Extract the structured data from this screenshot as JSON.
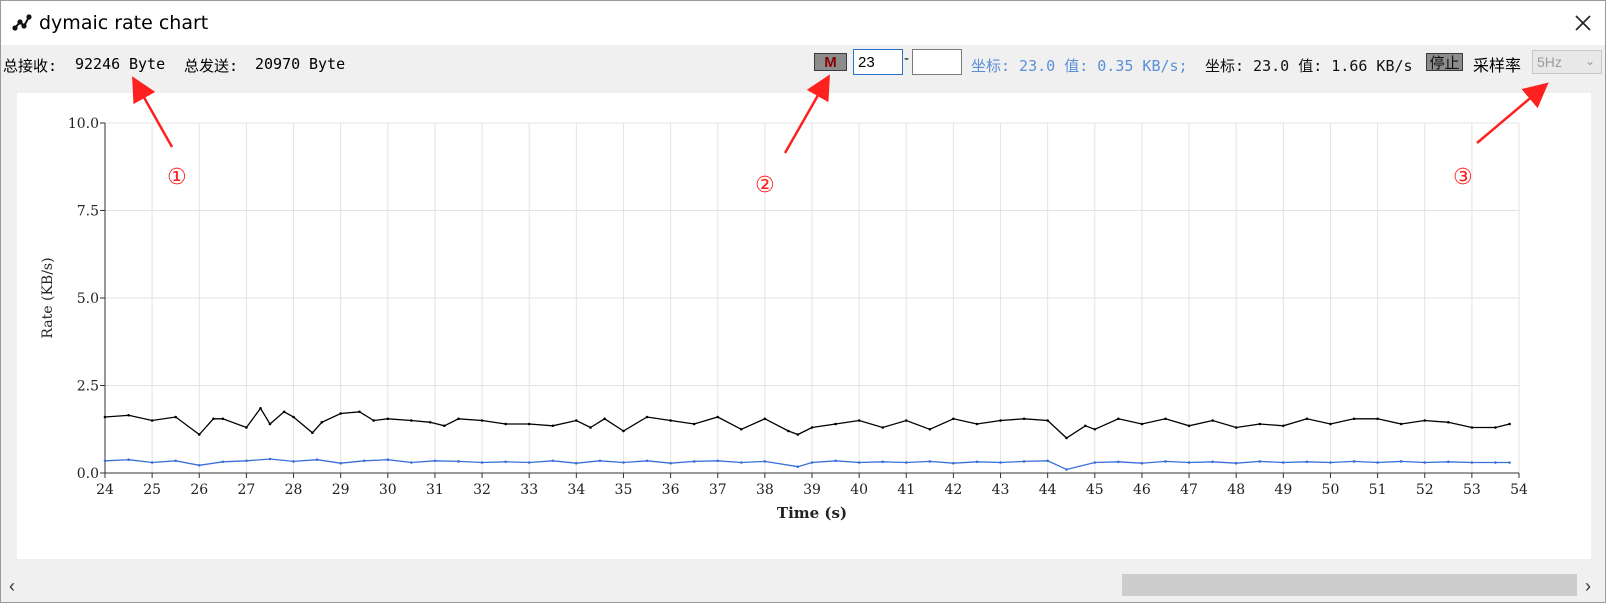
{
  "window": {
    "title": "dymaic rate chart",
    "icon": "chart-nodes-icon"
  },
  "toolbar": {
    "total_recv_label": "总接收:",
    "total_recv_value": "92246",
    "total_recv_unit": "Byte",
    "total_send_label": "总发送:",
    "total_send_value": "20970",
    "total_send_unit": "Byte",
    "m_button": "M",
    "range_from": "23",
    "range_to": "",
    "readout_blue": "坐标: 23.0 值: 0.35 KB/s;",
    "readout_black": "坐标: 23.0 值: 1.66 KB/s",
    "stop_button": "停止",
    "sample_rate_label": "采样率",
    "sample_rate_value": "5Hz"
  },
  "annotations": {
    "one": "①",
    "two": "②",
    "three": "③"
  },
  "colors": {
    "black_series": "#000000",
    "blue_series": "#3a6fd8",
    "readout_blue": "#5b8fd8",
    "annotation_red": "#ff2020"
  },
  "chart_data": {
    "type": "line",
    "xlabel": "Time (s)",
    "ylabel": "Rate (KB/s)",
    "xlim": [
      24,
      54
    ],
    "ylim": [
      0,
      10
    ],
    "xticks": [
      "24",
      "25",
      "26",
      "27",
      "28",
      "29",
      "30",
      "31",
      "32",
      "33",
      "34",
      "35",
      "36",
      "37",
      "38",
      "39",
      "40",
      "41",
      "42",
      "43",
      "44",
      "45",
      "46",
      "47",
      "48",
      "49",
      "50",
      "51",
      "52",
      "53",
      "54"
    ],
    "yticks": [
      "0.0",
      "2.5",
      "5.0",
      "7.5",
      "10.0"
    ],
    "grid": true,
    "series": [
      {
        "color": "#000000",
        "x": [
          24.0,
          24.5,
          25.0,
          25.5,
          26.0,
          26.3,
          26.5,
          27.0,
          27.3,
          27.5,
          27.8,
          28.0,
          28.4,
          28.6,
          29.0,
          29.4,
          29.7,
          30.0,
          30.5,
          30.9,
          31.2,
          31.5,
          32.0,
          32.5,
          33.0,
          33.5,
          34.0,
          34.3,
          34.6,
          35.0,
          35.5,
          36.0,
          36.5,
          37.0,
          37.5,
          38.0,
          38.5,
          38.7,
          39.0,
          39.5,
          40.0,
          40.5,
          41.0,
          41.5,
          42.0,
          42.5,
          43.0,
          43.5,
          44.0,
          44.4,
          44.8,
          45.0,
          45.5,
          46.0,
          46.5,
          47.0,
          47.5,
          48.0,
          48.5,
          49.0,
          49.5,
          50.0,
          50.5,
          51.0,
          51.5,
          52.0,
          52.5,
          53.0,
          53.5,
          53.8
        ],
        "values": [
          1.6,
          1.65,
          1.5,
          1.6,
          1.1,
          1.55,
          1.55,
          1.3,
          1.85,
          1.4,
          1.75,
          1.6,
          1.15,
          1.45,
          1.7,
          1.75,
          1.5,
          1.55,
          1.5,
          1.45,
          1.35,
          1.55,
          1.5,
          1.4,
          1.4,
          1.35,
          1.5,
          1.3,
          1.55,
          1.2,
          1.6,
          1.5,
          1.4,
          1.6,
          1.25,
          1.55,
          1.2,
          1.1,
          1.3,
          1.4,
          1.5,
          1.3,
          1.5,
          1.25,
          1.55,
          1.4,
          1.5,
          1.55,
          1.5,
          1.0,
          1.35,
          1.25,
          1.55,
          1.4,
          1.55,
          1.35,
          1.5,
          1.3,
          1.4,
          1.35,
          1.55,
          1.4,
          1.55,
          1.55,
          1.4,
          1.5,
          1.45,
          1.3,
          1.3,
          1.4
        ]
      },
      {
        "color": "#3a6fd8",
        "x": [
          24.0,
          24.5,
          25.0,
          25.5,
          26.0,
          26.5,
          27.0,
          27.5,
          28.0,
          28.5,
          29.0,
          29.5,
          30.0,
          30.5,
          31.0,
          31.5,
          32.0,
          32.5,
          33.0,
          33.5,
          34.0,
          34.5,
          35.0,
          35.5,
          36.0,
          36.5,
          37.0,
          37.5,
          38.0,
          38.7,
          39.0,
          39.5,
          40.0,
          40.5,
          41.0,
          41.5,
          42.0,
          42.5,
          43.0,
          43.5,
          44.0,
          44.4,
          45.0,
          45.5,
          46.0,
          46.5,
          47.0,
          47.5,
          48.0,
          48.5,
          49.0,
          49.5,
          50.0,
          50.5,
          51.0,
          51.5,
          52.0,
          52.5,
          53.0,
          53.5,
          53.8
        ],
        "values": [
          0.35,
          0.38,
          0.3,
          0.35,
          0.22,
          0.32,
          0.35,
          0.4,
          0.33,
          0.38,
          0.28,
          0.35,
          0.38,
          0.3,
          0.35,
          0.33,
          0.3,
          0.32,
          0.3,
          0.35,
          0.28,
          0.35,
          0.3,
          0.35,
          0.28,
          0.33,
          0.35,
          0.3,
          0.33,
          0.18,
          0.3,
          0.35,
          0.3,
          0.32,
          0.3,
          0.33,
          0.28,
          0.32,
          0.3,
          0.33,
          0.35,
          0.1,
          0.3,
          0.32,
          0.28,
          0.33,
          0.3,
          0.32,
          0.28,
          0.33,
          0.3,
          0.32,
          0.3,
          0.33,
          0.3,
          0.33,
          0.3,
          0.32,
          0.3,
          0.3,
          0.3
        ]
      }
    ]
  }
}
